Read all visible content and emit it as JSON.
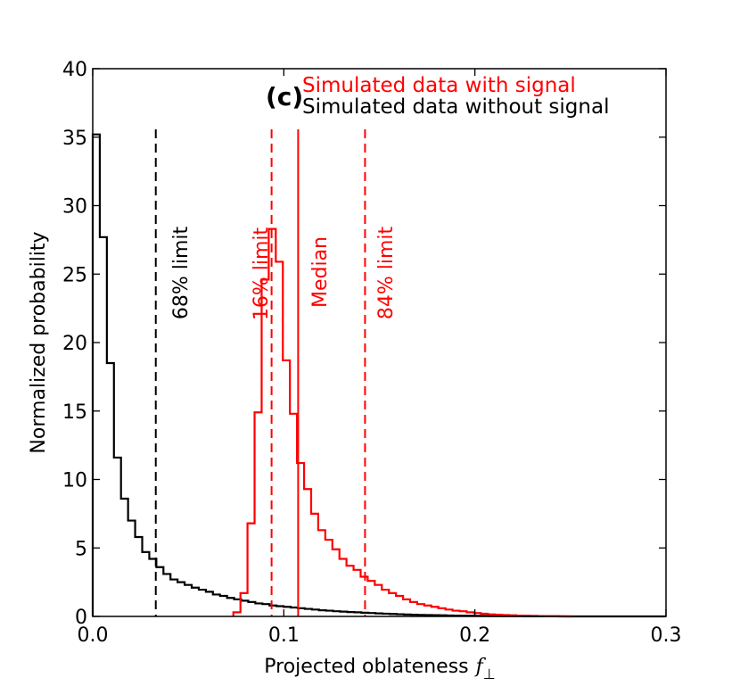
{
  "chart_data": {
    "type": "step-histogram",
    "panel_label": "(c)",
    "xlabel": "Projected oblateness",
    "xlabel_symbol": "f",
    "xlabel_subscript": "⊥",
    "ylabel": "Normalized probability",
    "xlim": [
      0.0,
      0.3
    ],
    "ylim": [
      0,
      40
    ],
    "xticks": [
      0.0,
      0.1,
      0.2,
      0.3
    ],
    "xtick_labels": [
      "0.0",
      "0.1",
      "0.2",
      "0.3"
    ],
    "yticks": [
      0,
      5,
      10,
      15,
      20,
      25,
      30,
      35,
      40
    ],
    "ytick_labels": [
      "0",
      "5",
      "10",
      "15",
      "20",
      "25",
      "30",
      "35",
      "40"
    ],
    "colors": {
      "signal": "#ff0000",
      "no_signal": "#000000"
    },
    "legend": [
      {
        "label": "Simulated data with signal",
        "color": "#ff0000"
      },
      {
        "label": "Simulated data without signal",
        "color": "#000000"
      }
    ],
    "bin_width": 0.0037,
    "series": [
      {
        "name": "Simulated data without signal",
        "color": "#000000",
        "bin_start": 0.0,
        "values": [
          35.2,
          27.7,
          18.5,
          11.6,
          8.6,
          7.0,
          5.8,
          4.7,
          4.2,
          3.6,
          3.1,
          2.7,
          2.5,
          2.3,
          2.1,
          1.95,
          1.8,
          1.6,
          1.5,
          1.35,
          1.25,
          1.15,
          1.05,
          0.95,
          0.9,
          0.8,
          0.75,
          0.7,
          0.65,
          0.6,
          0.55,
          0.5,
          0.45,
          0.42,
          0.38,
          0.35,
          0.32,
          0.3,
          0.27,
          0.25,
          0.22,
          0.2,
          0.18,
          0.16,
          0.14,
          0.12,
          0.11,
          0.1,
          0.09,
          0.08,
          0.07,
          0.06,
          0.05,
          0.05,
          0.04,
          0.04,
          0.03,
          0.03,
          0.02,
          0.02,
          0.02,
          0.01,
          0.01,
          0.01,
          0.01,
          0.01,
          0.0,
          0.0,
          0.0,
          0.0,
          0.0,
          0.0,
          0.0,
          0.0,
          0.0,
          0.0,
          0.0,
          0.0,
          0.0,
          0.0,
          0.0
        ]
      },
      {
        "name": "Simulated data with signal",
        "color": "#ff0000",
        "bin_start": 0.0736,
        "values": [
          0.3,
          1.7,
          6.8,
          14.9,
          24.6,
          28.3,
          25.9,
          18.7,
          14.8,
          11.2,
          9.3,
          7.5,
          6.3,
          5.6,
          4.9,
          4.2,
          3.7,
          3.4,
          2.9,
          2.6,
          2.3,
          1.95,
          1.7,
          1.5,
          1.25,
          1.05,
          0.9,
          0.8,
          0.7,
          0.6,
          0.5,
          0.42,
          0.38,
          0.3,
          0.25,
          0.2,
          0.15,
          0.12,
          0.1,
          0.08,
          0.06,
          0.05,
          0.04,
          0.03,
          0.02,
          0.02,
          0.01,
          0.0
        ]
      }
    ],
    "vlines": [
      {
        "x": 0.033,
        "style": "dashed",
        "color": "#000000",
        "label": "68% limit"
      },
      {
        "x": 0.0936,
        "style": "dashed",
        "color": "#ff0000",
        "label": "16% limit"
      },
      {
        "x": 0.1075,
        "style": "solid",
        "color": "#ff0000",
        "label": "Median"
      },
      {
        "x": 0.1425,
        "style": "dashed",
        "color": "#ff0000",
        "label": "84% limit"
      }
    ]
  }
}
